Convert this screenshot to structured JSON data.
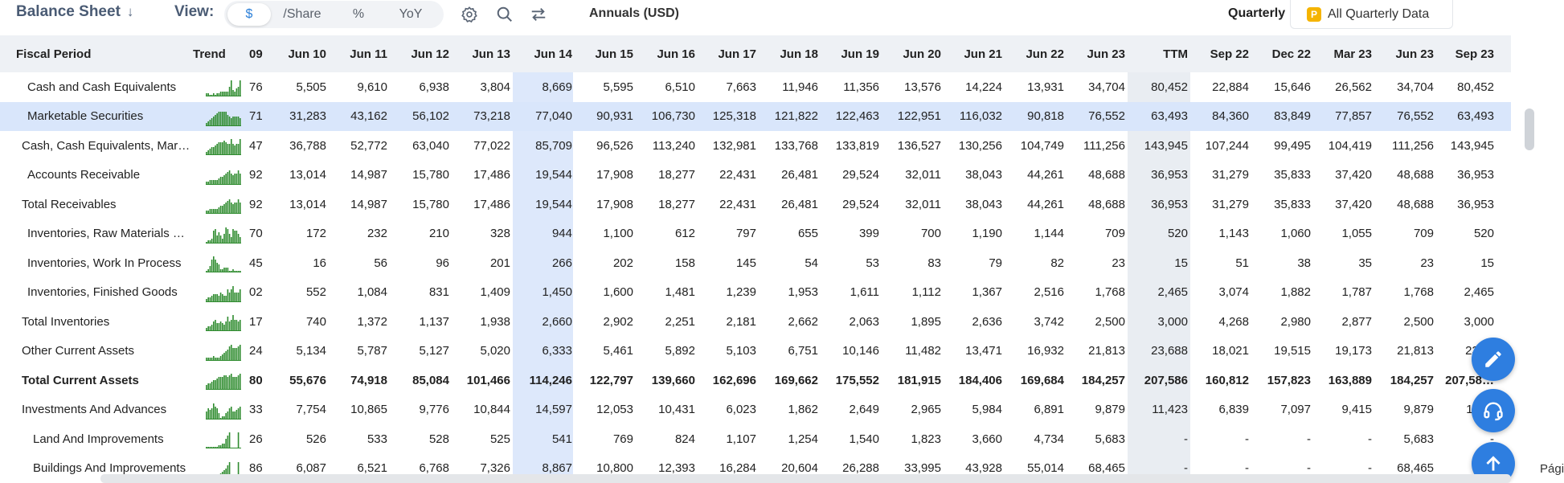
{
  "toolbar": {
    "statement": "Balance Sheet",
    "view_label": "View:",
    "view_options": [
      "$",
      "/Share",
      "%",
      "YoY"
    ],
    "view_selected": "$",
    "period_type": "Annuals (USD)",
    "quarterly_label": "Quarterly",
    "all_quarterly_badge": "P",
    "all_quarterly_label": "All Quarterly Data"
  },
  "table": {
    "header": {
      "label": "Fiscal Period",
      "trend": "Trend",
      "first": "09",
      "columns": [
        "Jun 10",
        "Jun 11",
        "Jun 12",
        "Jun 13",
        "Jun 14",
        "Jun 15",
        "Jun 16",
        "Jun 17",
        "Jun 18",
        "Jun 19",
        "Jun 20",
        "Jun 21",
        "Jun 22",
        "Jun 23",
        "TTM",
        "Sep 22",
        "Dec 22",
        "Mar 23",
        "Jun 23",
        "Sep 23"
      ]
    },
    "rows": [
      {
        "label": "Cash and Cash Equivalents",
        "first": "76",
        "values": [
          "5,505",
          "9,610",
          "6,938",
          "3,804",
          "8,669",
          "5,595",
          "6,510",
          "7,663",
          "11,946",
          "11,356",
          "13,576",
          "14,224",
          "13,931",
          "34,704",
          "80,452",
          "22,884",
          "15,646",
          "26,562",
          "34,704",
          "80,452"
        ],
        "trend": [
          2,
          2,
          1,
          1,
          2,
          1,
          2,
          2,
          3,
          3,
          3,
          3,
          3,
          6,
          10,
          4,
          3,
          5,
          6,
          10
        ]
      },
      {
        "label": "Marketable Securities",
        "first": "71",
        "values": [
          "31,283",
          "43,162",
          "56,102",
          "73,218",
          "77,040",
          "90,931",
          "106,730",
          "125,318",
          "121,822",
          "122,463",
          "122,951",
          "116,032",
          "90,818",
          "76,552",
          "63,493",
          "84,360",
          "83,849",
          "77,857",
          "76,552",
          "63,493"
        ],
        "trend": [
          2,
          3,
          4,
          5,
          6,
          7,
          8,
          9,
          9,
          9,
          9,
          9,
          7,
          6,
          5,
          6,
          6,
          6,
          6,
          5
        ]
      },
      {
        "label": "Cash, Cash Equivalents, Mar…",
        "first": "47",
        "values": [
          "36,788",
          "52,772",
          "63,040",
          "77,022",
          "85,709",
          "96,526",
          "113,240",
          "132,981",
          "133,768",
          "133,819",
          "136,527",
          "130,256",
          "104,749",
          "111,256",
          "143,945",
          "107,244",
          "99,495",
          "104,419",
          "111,256",
          "143,945"
        ],
        "trend": [
          2,
          3,
          4,
          5,
          5,
          6,
          7,
          8,
          8,
          8,
          9,
          8,
          7,
          7,
          10,
          7,
          6,
          7,
          7,
          10
        ]
      },
      {
        "label": "Accounts Receivable",
        "first": "92",
        "values": [
          "13,014",
          "14,987",
          "15,780",
          "17,486",
          "19,544",
          "17,908",
          "18,277",
          "22,431",
          "26,481",
          "29,524",
          "32,011",
          "38,043",
          "44,261",
          "48,688",
          "36,953",
          "31,279",
          "35,833",
          "37,420",
          "48,688",
          "36,953"
        ],
        "trend": [
          2,
          2,
          3,
          3,
          3,
          3,
          3,
          4,
          5,
          5,
          6,
          7,
          8,
          9,
          7,
          6,
          7,
          7,
          9,
          7
        ]
      },
      {
        "label": "Total Receivables",
        "first": "92",
        "values": [
          "13,014",
          "14,987",
          "15,780",
          "17,486",
          "19,544",
          "17,908",
          "18,277",
          "22,431",
          "26,481",
          "29,524",
          "32,011",
          "38,043",
          "44,261",
          "48,688",
          "36,953",
          "31,279",
          "35,833",
          "37,420",
          "48,688",
          "36,953"
        ],
        "trend": [
          2,
          2,
          3,
          3,
          3,
          3,
          3,
          4,
          5,
          5,
          6,
          7,
          8,
          9,
          7,
          6,
          7,
          7,
          9,
          7
        ]
      },
      {
        "label": "Inventories, Raw Materials …",
        "first": "70",
        "values": [
          "172",
          "232",
          "210",
          "328",
          "944",
          "1,100",
          "612",
          "797",
          "655",
          "399",
          "700",
          "1,190",
          "1,144",
          "709",
          "520",
          "1,143",
          "1,060",
          "1,055",
          "709",
          "520"
        ],
        "trend": [
          1,
          2,
          2,
          3,
          8,
          9,
          5,
          7,
          5,
          3,
          6,
          10,
          9,
          6,
          4,
          9,
          8,
          8,
          6,
          4
        ]
      },
      {
        "label": "Inventories, Work In Process",
        "first": "45",
        "values": [
          "16",
          "56",
          "96",
          "201",
          "266",
          "202",
          "158",
          "145",
          "54",
          "53",
          "83",
          "79",
          "82",
          "23",
          "15",
          "51",
          "38",
          "35",
          "23",
          "15"
        ],
        "trend": [
          1,
          2,
          4,
          8,
          10,
          8,
          6,
          5,
          2,
          2,
          3,
          3,
          3,
          1,
          1,
          2,
          1,
          1,
          1,
          1
        ]
      },
      {
        "label": "Inventories, Finished Goods",
        "first": "02",
        "values": [
          "552",
          "1,084",
          "831",
          "1,409",
          "1,450",
          "1,600",
          "1,481",
          "1,239",
          "1,953",
          "1,611",
          "1,112",
          "1,367",
          "2,516",
          "1,768",
          "2,465",
          "3,074",
          "1,882",
          "1,787",
          "1,768",
          "2,465"
        ],
        "trend": [
          2,
          3,
          3,
          4,
          5,
          5,
          5,
          4,
          6,
          5,
          4,
          4,
          8,
          6,
          8,
          10,
          6,
          6,
          6,
          8
        ]
      },
      {
        "label": "Total Inventories",
        "first": "17",
        "values": [
          "740",
          "1,372",
          "1,137",
          "1,938",
          "2,660",
          "2,902",
          "2,251",
          "2,181",
          "2,662",
          "2,063",
          "1,895",
          "2,636",
          "3,742",
          "2,500",
          "3,000",
          "4,268",
          "2,980",
          "2,877",
          "2,500",
          "3,000"
        ],
        "trend": [
          2,
          3,
          3,
          4,
          6,
          7,
          5,
          5,
          6,
          5,
          4,
          6,
          9,
          6,
          7,
          10,
          7,
          7,
          6,
          7
        ]
      },
      {
        "label": "Other Current Assets",
        "first": "24",
        "values": [
          "5,134",
          "5,787",
          "5,127",
          "5,020",
          "6,333",
          "5,461",
          "5,892",
          "5,103",
          "6,751",
          "10,146",
          "11,482",
          "13,471",
          "16,932",
          "21,813",
          "23,688",
          "18,021",
          "19,515",
          "19,173",
          "21,813",
          "23,…"
        ],
        "trend": [
          2,
          2,
          2,
          2,
          3,
          2,
          2,
          2,
          3,
          4,
          5,
          6,
          7,
          9,
          10,
          8,
          8,
          8,
          9,
          10
        ]
      },
      {
        "label": "Total Current Assets",
        "first": "80",
        "bold": true,
        "values": [
          "55,676",
          "74,918",
          "85,084",
          "101,466",
          "114,246",
          "122,797",
          "139,660",
          "162,696",
          "169,662",
          "175,552",
          "181,915",
          "184,406",
          "169,684",
          "184,257",
          "207,586",
          "160,812",
          "157,823",
          "163,889",
          "184,257",
          "207,58…"
        ],
        "trend": [
          3,
          4,
          4,
          5,
          6,
          6,
          7,
          8,
          8,
          8,
          9,
          9,
          8,
          9,
          10,
          8,
          8,
          8,
          9,
          10
        ]
      },
      {
        "label": "Investments And Advances",
        "first": "33",
        "values": [
          "7,754",
          "10,865",
          "9,776",
          "10,844",
          "14,597",
          "12,053",
          "10,431",
          "6,023",
          "1,862",
          "2,649",
          "2,965",
          "5,984",
          "6,891",
          "9,879",
          "11,423",
          "6,839",
          "7,097",
          "9,415",
          "9,879",
          "11,…"
        ],
        "trend": [
          5,
          7,
          6,
          7,
          10,
          8,
          7,
          4,
          1,
          2,
          2,
          4,
          5,
          7,
          8,
          5,
          5,
          6,
          7,
          8
        ]
      },
      {
        "label": "Land And Improvements",
        "first": "26",
        "indent2": true,
        "values": [
          "526",
          "533",
          "528",
          "525",
          "541",
          "769",
          "824",
          "1,107",
          "1,254",
          "1,540",
          "1,823",
          "3,660",
          "4,734",
          "5,683",
          "-",
          "-",
          "-",
          "-",
          "5,683",
          "-"
        ],
        "trend": [
          1,
          1,
          1,
          1,
          1,
          1,
          1,
          2,
          2,
          3,
          3,
          6,
          8,
          10,
          0,
          0,
          0,
          0,
          10,
          0
        ]
      },
      {
        "label": "Buildings And Improvements",
        "first": "86",
        "indent2": true,
        "values": [
          "6,087",
          "6,521",
          "6,768",
          "7,326",
          "8,867",
          "10,800",
          "12,393",
          "16,284",
          "20,604",
          "26,288",
          "33,995",
          "43,928",
          "55,014",
          "68,465",
          "-",
          "-",
          "-",
          "-",
          "68,465",
          "-"
        ],
        "trend": [
          1,
          1,
          1,
          1,
          1,
          2,
          2,
          2,
          3,
          4,
          5,
          6,
          8,
          10,
          0,
          0,
          0,
          0,
          10,
          0
        ]
      }
    ]
  },
  "page_footer": "Pági"
}
